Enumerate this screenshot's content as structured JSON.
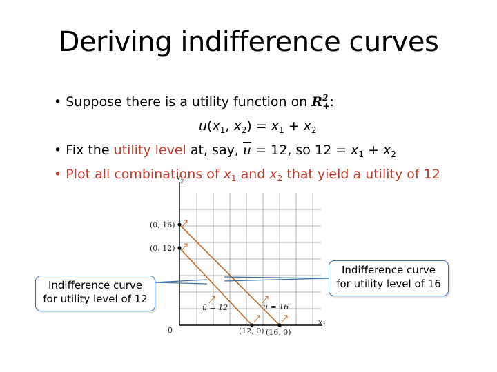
{
  "slide": {
    "title": "Deriving indifference curves"
  },
  "bullets": {
    "b1_prefix": "• Suppose there is a utility function on ",
    "b1_set": "R",
    "b1_set_sup": "2",
    "b1_set_sub": "+",
    "b1_suffix": ":",
    "eq_u": "u",
    "eq_open": "(",
    "eq_x1": "x",
    "eq_sub1": "1",
    "eq_comma": ", ",
    "eq_x2": "x",
    "eq_sub2": "2",
    "eq_rest": ") = ",
    "eq_r_x1": "x",
    "eq_r_sub1": "1",
    "eq_plus": " + ",
    "eq_r_x2": "x",
    "eq_r_sub2": "2",
    "b2_prefix": "• Fix the ",
    "b2_red": "utility level",
    "b2_mid": " at, say, ",
    "b2_ubar": "u",
    "b2_eq": " = 12, so 12 = ",
    "b2_x1": "x",
    "b2_sub1": "1",
    "b2_plus": " + ",
    "b2_x2": "x",
    "b2_sub2": "2",
    "b3_red_a": "• Plot all combinations of ",
    "b3_x1": "x",
    "b3_sub1": "1",
    "b3_and": " and ",
    "b3_x2": "x",
    "b3_sub2": "2",
    "b3_red_b": " that yield a utility of 12"
  },
  "graph": {
    "y_axis_label": "x",
    "y_axis_sub": "2",
    "x_axis_label": "x",
    "x_axis_sub": "1",
    "origin": "0",
    "p_0_16": "(0, 16)",
    "p_0_12": "(0, 12)",
    "p_12_0": "(12, 0)",
    "p_16_0": "(16, 0)",
    "lbl_u12": "ū = 12",
    "lbl_u16": "u = 16",
    "colors": {
      "curve": "#c0682a",
      "grid": "#b0b0b0",
      "axis": "#000000",
      "callout_border": "#3d6ea8"
    }
  },
  "callouts": {
    "c12_line1": "Indifference curve",
    "c12_line2": "for utility level of 12",
    "c16_line1": "Indifference curve",
    "c16_line2": "for utility level of 16"
  }
}
